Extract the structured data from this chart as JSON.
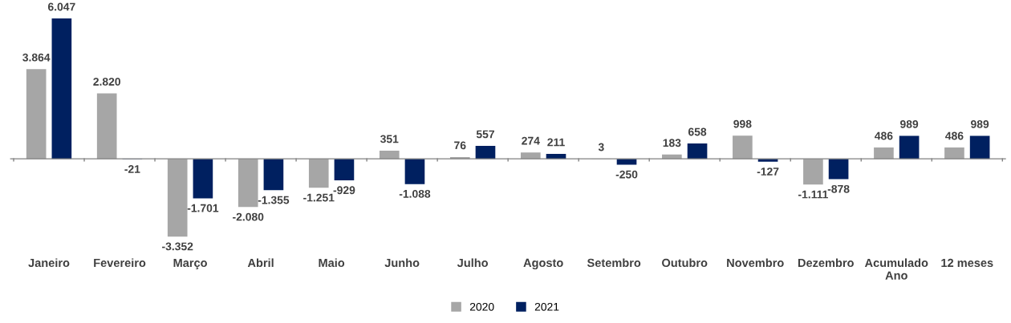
{
  "chart_data": {
    "type": "bar",
    "categories": [
      "Janeiro",
      "Fevereiro",
      "Março",
      "Abril",
      "Maio",
      "Junho",
      "Julho",
      "Agosto",
      "Setembro",
      "Outubro",
      "Novembro",
      "Dezembro",
      "Acumulado\nAno",
      "12 meses"
    ],
    "series": [
      {
        "name": "2020",
        "color": "#a6a6a6",
        "values": [
          3864,
          2820,
          -3352,
          -2080,
          -1251,
          351,
          76,
          274,
          3,
          183,
          998,
          -1111,
          486,
          486
        ],
        "value_labels": [
          "3.864",
          "2.820",
          "-3.352",
          "-2.080",
          "-1.251",
          "351",
          "76",
          "274",
          "3",
          "183",
          "998",
          "-1.111",
          "486",
          "486"
        ]
      },
      {
        "name": "2021",
        "color": "#002060",
        "values": [
          6047,
          -21,
          -1701,
          -1355,
          -929,
          -1088,
          557,
          211,
          -250,
          658,
          -127,
          -878,
          989,
          989
        ],
        "value_labels": [
          "6.047",
          "-21",
          "-1.701",
          "-1.355",
          "-929",
          "-1.088",
          "557",
          "211",
          "-250",
          "658",
          "-127",
          "-878",
          "989",
          "989"
        ]
      }
    ],
    "legend": "bottom",
    "grid": false
  }
}
